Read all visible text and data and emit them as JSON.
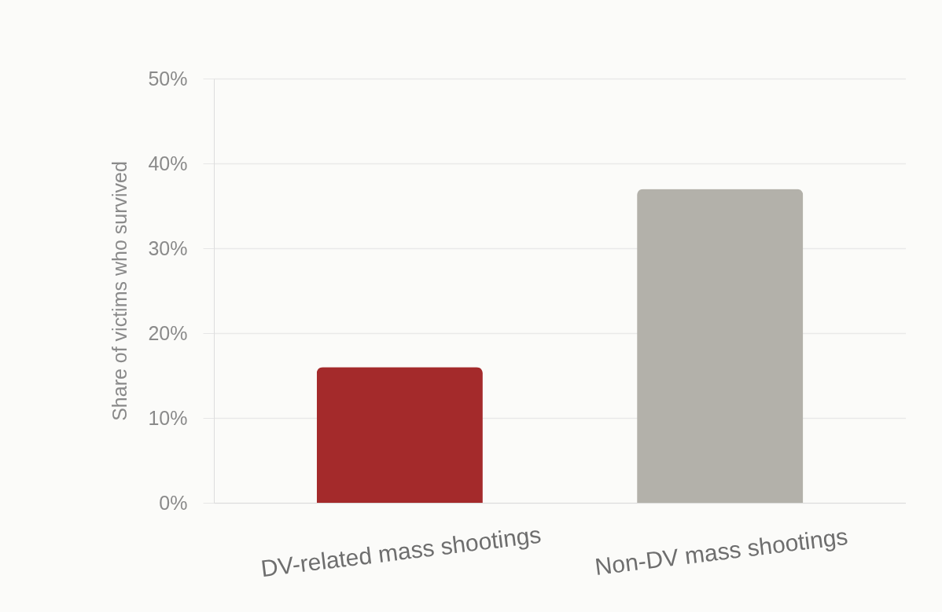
{
  "chart_data": {
    "type": "bar",
    "ylabel": "Share of victims who survived",
    "categories": [
      "DV-related mass shootings",
      "Non-DV mass shootings"
    ],
    "values": [
      16,
      37
    ],
    "colors": [
      "#a42a2b",
      "#b3b1aa"
    ],
    "ylim": [
      0,
      50
    ],
    "yticks": [
      {
        "value": 0,
        "label": "0%"
      },
      {
        "value": 10,
        "label": "10%"
      },
      {
        "value": 20,
        "label": "20%"
      },
      {
        "value": 30,
        "label": "30%"
      },
      {
        "value": 40,
        "label": "40%"
      },
      {
        "value": 50,
        "label": "50%"
      }
    ],
    "grid": "y"
  }
}
